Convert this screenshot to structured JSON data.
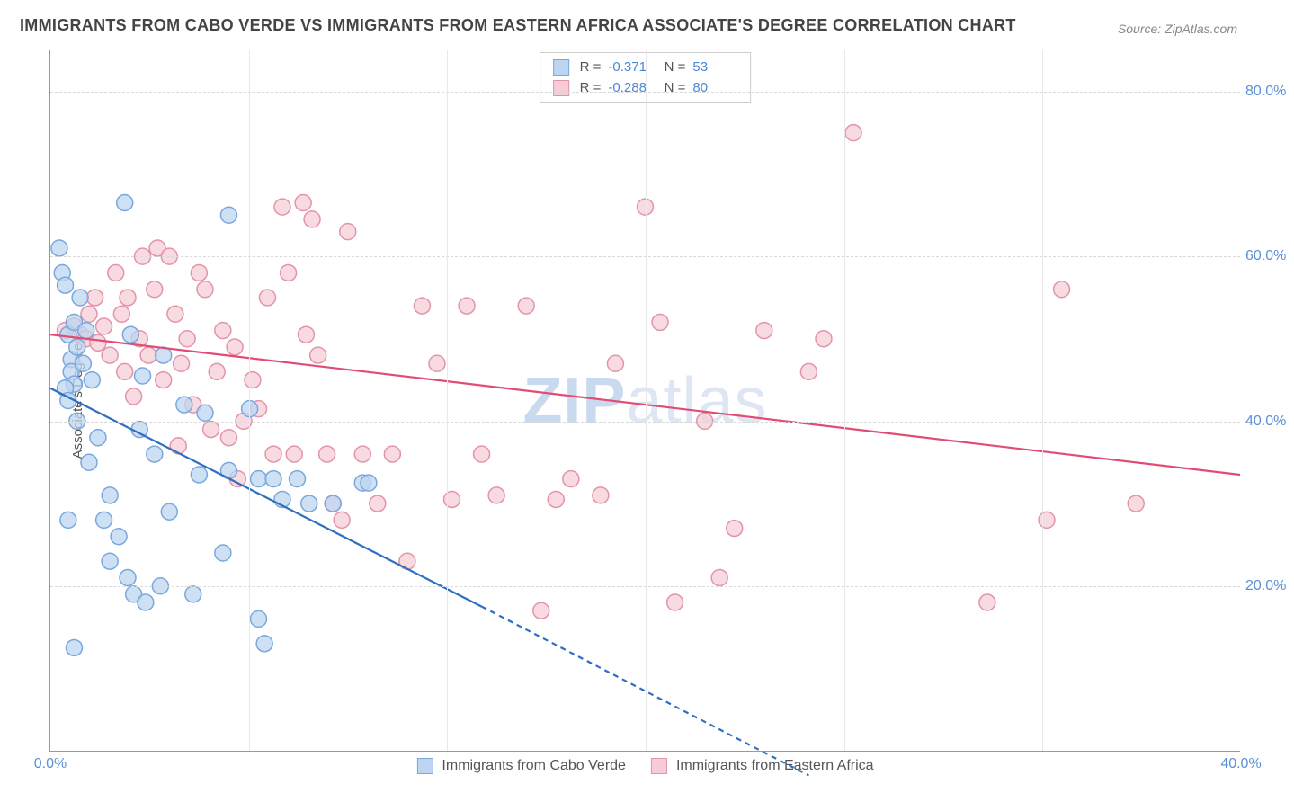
{
  "title": "IMMIGRANTS FROM CABO VERDE VS IMMIGRANTS FROM EASTERN AFRICA ASSOCIATE'S DEGREE CORRELATION CHART",
  "source": "Source: ZipAtlas.com",
  "yaxis_label": "Associate's Degree",
  "watermark": "ZIPatlas",
  "xlim": [
    0,
    40
  ],
  "ylim": [
    0,
    85
  ],
  "ytick_values": [
    20,
    40,
    60,
    80
  ],
  "ytick_labels": [
    "20.0%",
    "40.0%",
    "60.0%",
    "80.0%"
  ],
  "xtick_values": [
    0,
    40
  ],
  "xtick_labels": [
    "0.0%",
    "40.0%"
  ],
  "xgrid_values": [
    6.67,
    13.33,
    20,
    26.67,
    33.33
  ],
  "marker_radius": 9,
  "marker_stroke_width": 1.5,
  "trend_line_width": 2.2,
  "background_color": "#ffffff",
  "grid_color": "#d8d8d8",
  "axis_color": "#999999",
  "tick_label_color": "#5b8fd6",
  "title_color": "#444444",
  "title_fontsize": 18,
  "tick_fontsize": 16,
  "series": {
    "cabo_verde": {
      "label": "Immigrants from Cabo Verde",
      "fill": "#bdd5f0",
      "stroke": "#7aa8dd",
      "line_color": "#2f6fc1",
      "R": "-0.371",
      "N": "53",
      "trend": {
        "x1": 0,
        "y1": 44,
        "x2": 14.5,
        "y2": 17.5,
        "dash_from_x": 14.5,
        "dash_to_x": 25.5,
        "dash_to_y": -3
      },
      "points": [
        [
          0.3,
          61
        ],
        [
          0.4,
          58
        ],
        [
          0.5,
          56.5
        ],
        [
          0.6,
          50.5
        ],
        [
          0.7,
          47.5
        ],
        [
          0.7,
          46
        ],
        [
          0.8,
          44.5
        ],
        [
          0.5,
          44
        ],
        [
          0.6,
          42.5
        ],
        [
          0.8,
          52
        ],
        [
          1.0,
          55
        ],
        [
          1.2,
          51
        ],
        [
          0.9,
          49
        ],
        [
          1.1,
          47
        ],
        [
          1.4,
          45
        ],
        [
          0.9,
          40
        ],
        [
          1.6,
          38
        ],
        [
          1.3,
          35
        ],
        [
          2.0,
          31
        ],
        [
          1.8,
          28
        ],
        [
          2.3,
          26
        ],
        [
          2.0,
          23
        ],
        [
          2.6,
          21
        ],
        [
          2.8,
          19
        ],
        [
          3.2,
          18
        ],
        [
          0.8,
          12.5
        ],
        [
          2.5,
          66.5
        ],
        [
          6.0,
          65
        ],
        [
          2.7,
          50.5
        ],
        [
          3.1,
          45.5
        ],
        [
          3.8,
          48
        ],
        [
          4.5,
          42
        ],
        [
          5.2,
          41
        ],
        [
          3.0,
          39
        ],
        [
          3.5,
          36
        ],
        [
          4.0,
          29
        ],
        [
          5.0,
          33.5
        ],
        [
          6.7,
          41.5
        ],
        [
          6.0,
          34
        ],
        [
          7.0,
          33
        ],
        [
          7.5,
          33
        ],
        [
          5.8,
          24
        ],
        [
          7.8,
          30.5
        ],
        [
          8.3,
          33
        ],
        [
          8.7,
          30
        ],
        [
          9.5,
          30
        ],
        [
          10.5,
          32.5
        ],
        [
          10.7,
          32.5
        ],
        [
          7.0,
          16
        ],
        [
          7.2,
          13
        ],
        [
          4.8,
          19
        ],
        [
          3.7,
          20
        ],
        [
          0.6,
          28
        ]
      ]
    },
    "eastern_africa": {
      "label": "Immigrants from Eastern Africa",
      "fill": "#f6cdd7",
      "stroke": "#e394aa",
      "line_color": "#e24b74",
      "R": "-0.288",
      "N": "80",
      "trend": {
        "x1": 0,
        "y1": 50.5,
        "x2": 40,
        "y2": 33.5
      },
      "points": [
        [
          0.5,
          51
        ],
        [
          0.8,
          51.5
        ],
        [
          1.0,
          50.5
        ],
        [
          1.2,
          50
        ],
        [
          1.3,
          53
        ],
        [
          1.5,
          55
        ],
        [
          1.6,
          49.5
        ],
        [
          1.8,
          51.5
        ],
        [
          2.0,
          48
        ],
        [
          2.2,
          58
        ],
        [
          2.4,
          53
        ],
        [
          2.5,
          46
        ],
        [
          2.6,
          55
        ],
        [
          2.8,
          43
        ],
        [
          3.0,
          50
        ],
        [
          3.1,
          60
        ],
        [
          3.3,
          48
        ],
        [
          3.5,
          56
        ],
        [
          3.6,
          61
        ],
        [
          3.8,
          45
        ],
        [
          4.0,
          60
        ],
        [
          4.2,
          53
        ],
        [
          4.4,
          47
        ],
        [
          4.6,
          50
        ],
        [
          4.8,
          42
        ],
        [
          5.0,
          58
        ],
        [
          5.2,
          56
        ],
        [
          5.4,
          39
        ],
        [
          5.6,
          46
        ],
        [
          5.8,
          51
        ],
        [
          6.0,
          38
        ],
        [
          6.2,
          49
        ],
        [
          6.5,
          40
        ],
        [
          6.8,
          45
        ],
        [
          7.0,
          41.5
        ],
        [
          7.3,
          55
        ],
        [
          7.5,
          36
        ],
        [
          7.8,
          66
        ],
        [
          8.0,
          58
        ],
        [
          8.2,
          36
        ],
        [
          8.5,
          66.5
        ],
        [
          8.8,
          64.5
        ],
        [
          9.0,
          48
        ],
        [
          9.3,
          36
        ],
        [
          9.5,
          30
        ],
        [
          9.8,
          28
        ],
        [
          10.0,
          63
        ],
        [
          10.5,
          36
        ],
        [
          11.0,
          30
        ],
        [
          11.5,
          36
        ],
        [
          12.0,
          23
        ],
        [
          12.5,
          54
        ],
        [
          13.0,
          47
        ],
        [
          13.5,
          30.5
        ],
        [
          14.0,
          54
        ],
        [
          14.5,
          36
        ],
        [
          15.0,
          31
        ],
        [
          16.0,
          54
        ],
        [
          16.5,
          17
        ],
        [
          17.0,
          30.5
        ],
        [
          17.5,
          33
        ],
        [
          18.5,
          31
        ],
        [
          19.0,
          47
        ],
        [
          20.0,
          66
        ],
        [
          20.5,
          52
        ],
        [
          21.0,
          18
        ],
        [
          22.0,
          40
        ],
        [
          22.5,
          21
        ],
        [
          23.0,
          27
        ],
        [
          24.0,
          51
        ],
        [
          25.5,
          46
        ],
        [
          26.0,
          50
        ],
        [
          27.0,
          75
        ],
        [
          31.5,
          18
        ],
        [
          33.5,
          28
        ],
        [
          34.0,
          56
        ],
        [
          36.5,
          30
        ],
        [
          4.3,
          37
        ],
        [
          6.3,
          33
        ],
        [
          8.6,
          50.5
        ]
      ]
    }
  },
  "stats_legend": [
    {
      "series": "cabo_verde"
    },
    {
      "series": "eastern_africa"
    }
  ],
  "bottom_legend": [
    {
      "series": "cabo_verde"
    },
    {
      "series": "eastern_africa"
    }
  ]
}
